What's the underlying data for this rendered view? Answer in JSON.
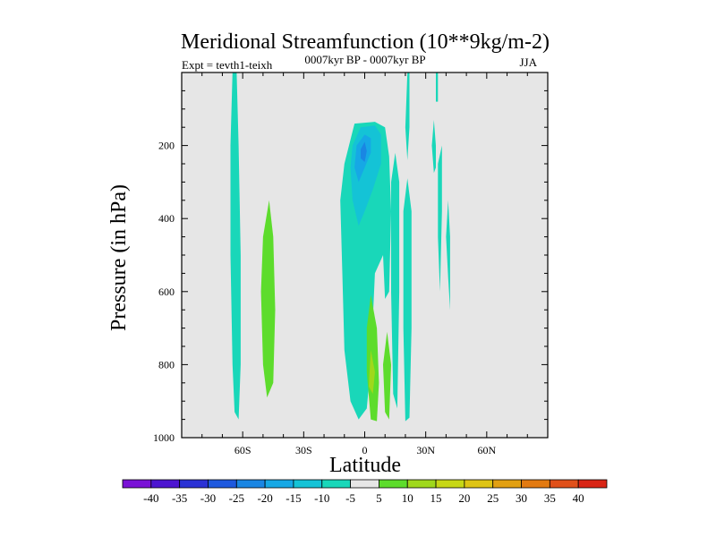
{
  "chart_data": {
    "type": "heatmap",
    "title": "Meridional Streamfunction (10**9kg/m-2)",
    "subtitle_left": "Expt = tevth1-teixh",
    "subtitle_center": "0007kyr BP - 0007kyr BP",
    "subtitle_right": "JJA",
    "xlabel": "Latitude",
    "ylabel": "Pressure (in hPa)",
    "xlim": [
      -90,
      90
    ],
    "ylim": [
      1000,
      0
    ],
    "x_ticks": [
      {
        "value": -60,
        "label": "60S"
      },
      {
        "value": -30,
        "label": "30S"
      },
      {
        "value": 0,
        "label": "0"
      },
      {
        "value": 30,
        "label": "30N"
      },
      {
        "value": 60,
        "label": "60N"
      }
    ],
    "y_ticks": [
      {
        "value": 200,
        "label": "200"
      },
      {
        "value": 400,
        "label": "400"
      },
      {
        "value": 600,
        "label": "600"
      },
      {
        "value": 800,
        "label": "800"
      },
      {
        "value": 1000,
        "label": "1000"
      }
    ],
    "background_level_color": "#e6e6e6",
    "colorbar": {
      "labels": [
        "-40",
        "-35",
        "-30",
        "-25",
        "-20",
        "-15",
        "-10",
        "-5",
        "5",
        "10",
        "15",
        "20",
        "25",
        "30",
        "35",
        "40"
      ],
      "colors": [
        "#7a12d6",
        "#4d15d0",
        "#2b32d5",
        "#1e59de",
        "#1a86e3",
        "#16a8e5",
        "#14c3d6",
        "#19d7b9",
        "#e6e6e6",
        "#5ddc2c",
        "#9fd81c",
        "#c7d715",
        "#dec414",
        "#e2a012",
        "#e27a11",
        "#e0501a",
        "#d92515"
      ]
    },
    "regions": [
      {
        "name": "cell-60s-negative",
        "level": -5,
        "points": [
          [
            -65,
            0
          ],
          [
            -63,
            0
          ],
          [
            -62,
            200
          ],
          [
            -61,
            500
          ],
          [
            -61,
            800
          ],
          [
            -62,
            950
          ],
          [
            -64,
            930
          ],
          [
            -65,
            800
          ],
          [
            -66,
            500
          ],
          [
            -66,
            200
          ]
        ]
      },
      {
        "name": "cell-45s-positive",
        "level": 5,
        "points": [
          [
            -47,
            350
          ],
          [
            -45,
            450
          ],
          [
            -44,
            650
          ],
          [
            -45,
            850
          ],
          [
            -48,
            890
          ],
          [
            -50,
            800
          ],
          [
            -51,
            600
          ],
          [
            -50,
            450
          ]
        ]
      },
      {
        "name": "cell-central-negative",
        "level": -5,
        "points": [
          [
            -10,
            250
          ],
          [
            -5,
            140
          ],
          [
            5,
            135
          ],
          [
            10,
            150
          ],
          [
            12,
            230
          ],
          [
            13,
            380
          ],
          [
            12,
            600
          ],
          [
            10,
            620
          ],
          [
            9,
            500
          ],
          [
            5,
            550
          ],
          [
            3,
            800
          ],
          [
            1,
            920
          ],
          [
            -3,
            950
          ],
          [
            -7,
            900
          ],
          [
            -10,
            760
          ],
          [
            -11,
            550
          ],
          [
            -12,
            350
          ]
        ]
      },
      {
        "name": "cell-central-core-1",
        "level": -10,
        "points": [
          [
            -6,
            200
          ],
          [
            -2,
            150
          ],
          [
            5,
            145
          ],
          [
            8,
            170
          ],
          [
            8,
            250
          ],
          [
            4,
            320
          ],
          [
            0,
            380
          ],
          [
            -3,
            420
          ],
          [
            -6,
            350
          ],
          [
            -7,
            260
          ]
        ]
      },
      {
        "name": "cell-central-core-2",
        "level": -15,
        "points": [
          [
            -4,
            200
          ],
          [
            0,
            170
          ],
          [
            3,
            180
          ],
          [
            3,
            220
          ],
          [
            0,
            260
          ],
          [
            -3,
            300
          ],
          [
            -5,
            260
          ]
        ]
      },
      {
        "name": "cell-central-core-3",
        "level": -20,
        "points": [
          [
            -2,
            210
          ],
          [
            0,
            190
          ],
          [
            1,
            215
          ],
          [
            0,
            245
          ],
          [
            -2,
            235
          ]
        ]
      },
      {
        "name": "cell-right-central-negative",
        "level": -5,
        "points": [
          [
            15,
            220
          ],
          [
            17,
            300
          ],
          [
            17,
            600
          ],
          [
            16,
            920
          ],
          [
            14,
            880
          ],
          [
            13,
            600
          ],
          [
            13,
            300
          ]
        ]
      },
      {
        "name": "cell-central-positive-1",
        "level": 5,
        "points": [
          [
            3,
            610
          ],
          [
            6,
            700
          ],
          [
            7,
            850
          ],
          [
            6,
            955
          ],
          [
            3,
            950
          ],
          [
            1,
            820
          ],
          [
            1,
            700
          ]
        ]
      },
      {
        "name": "cell-central-positive-2",
        "level": 5,
        "points": [
          [
            11,
            710
          ],
          [
            13,
            800
          ],
          [
            12,
            950
          ],
          [
            10,
            930
          ],
          [
            9,
            800
          ]
        ]
      },
      {
        "name": "cell-central-positive-core",
        "level": 10,
        "points": [
          [
            3,
            760
          ],
          [
            5,
            820
          ],
          [
            4,
            880
          ],
          [
            2,
            860
          ]
        ]
      },
      {
        "name": "cell-20n-negative",
        "level": -5,
        "points": [
          [
            21,
            290
          ],
          [
            23,
            380
          ],
          [
            23,
            700
          ],
          [
            22,
            945
          ],
          [
            20,
            955
          ],
          [
            19,
            700
          ],
          [
            19,
            380
          ]
        ]
      },
      {
        "name": "cell-20n-top-negative",
        "level": -5,
        "points": [
          [
            21,
            0
          ],
          [
            22,
            0
          ],
          [
            22,
            150
          ],
          [
            21,
            240
          ],
          [
            20,
            150
          ]
        ]
      },
      {
        "name": "cell-30n-negative-top",
        "level": -5,
        "points": [
          [
            35,
            0
          ],
          [
            36,
            0
          ],
          [
            36,
            80
          ],
          [
            35,
            80
          ]
        ]
      },
      {
        "name": "cell-30n-negative-mid",
        "level": -5,
        "points": [
          [
            34,
            130
          ],
          [
            35,
            200
          ],
          [
            35,
            260
          ],
          [
            34,
            275
          ],
          [
            33,
            200
          ]
        ]
      },
      {
        "name": "cell-35n-negative",
        "level": -5,
        "points": [
          [
            38,
            200
          ],
          [
            38,
            380
          ],
          [
            37,
            600
          ],
          [
            36,
            450
          ],
          [
            36,
            250
          ]
        ]
      },
      {
        "name": "cell-40n-negative",
        "level": -5,
        "points": [
          [
            41,
            350
          ],
          [
            42,
            450
          ],
          [
            42,
            650
          ],
          [
            41,
            560
          ],
          [
            40,
            450
          ]
        ]
      }
    ]
  }
}
